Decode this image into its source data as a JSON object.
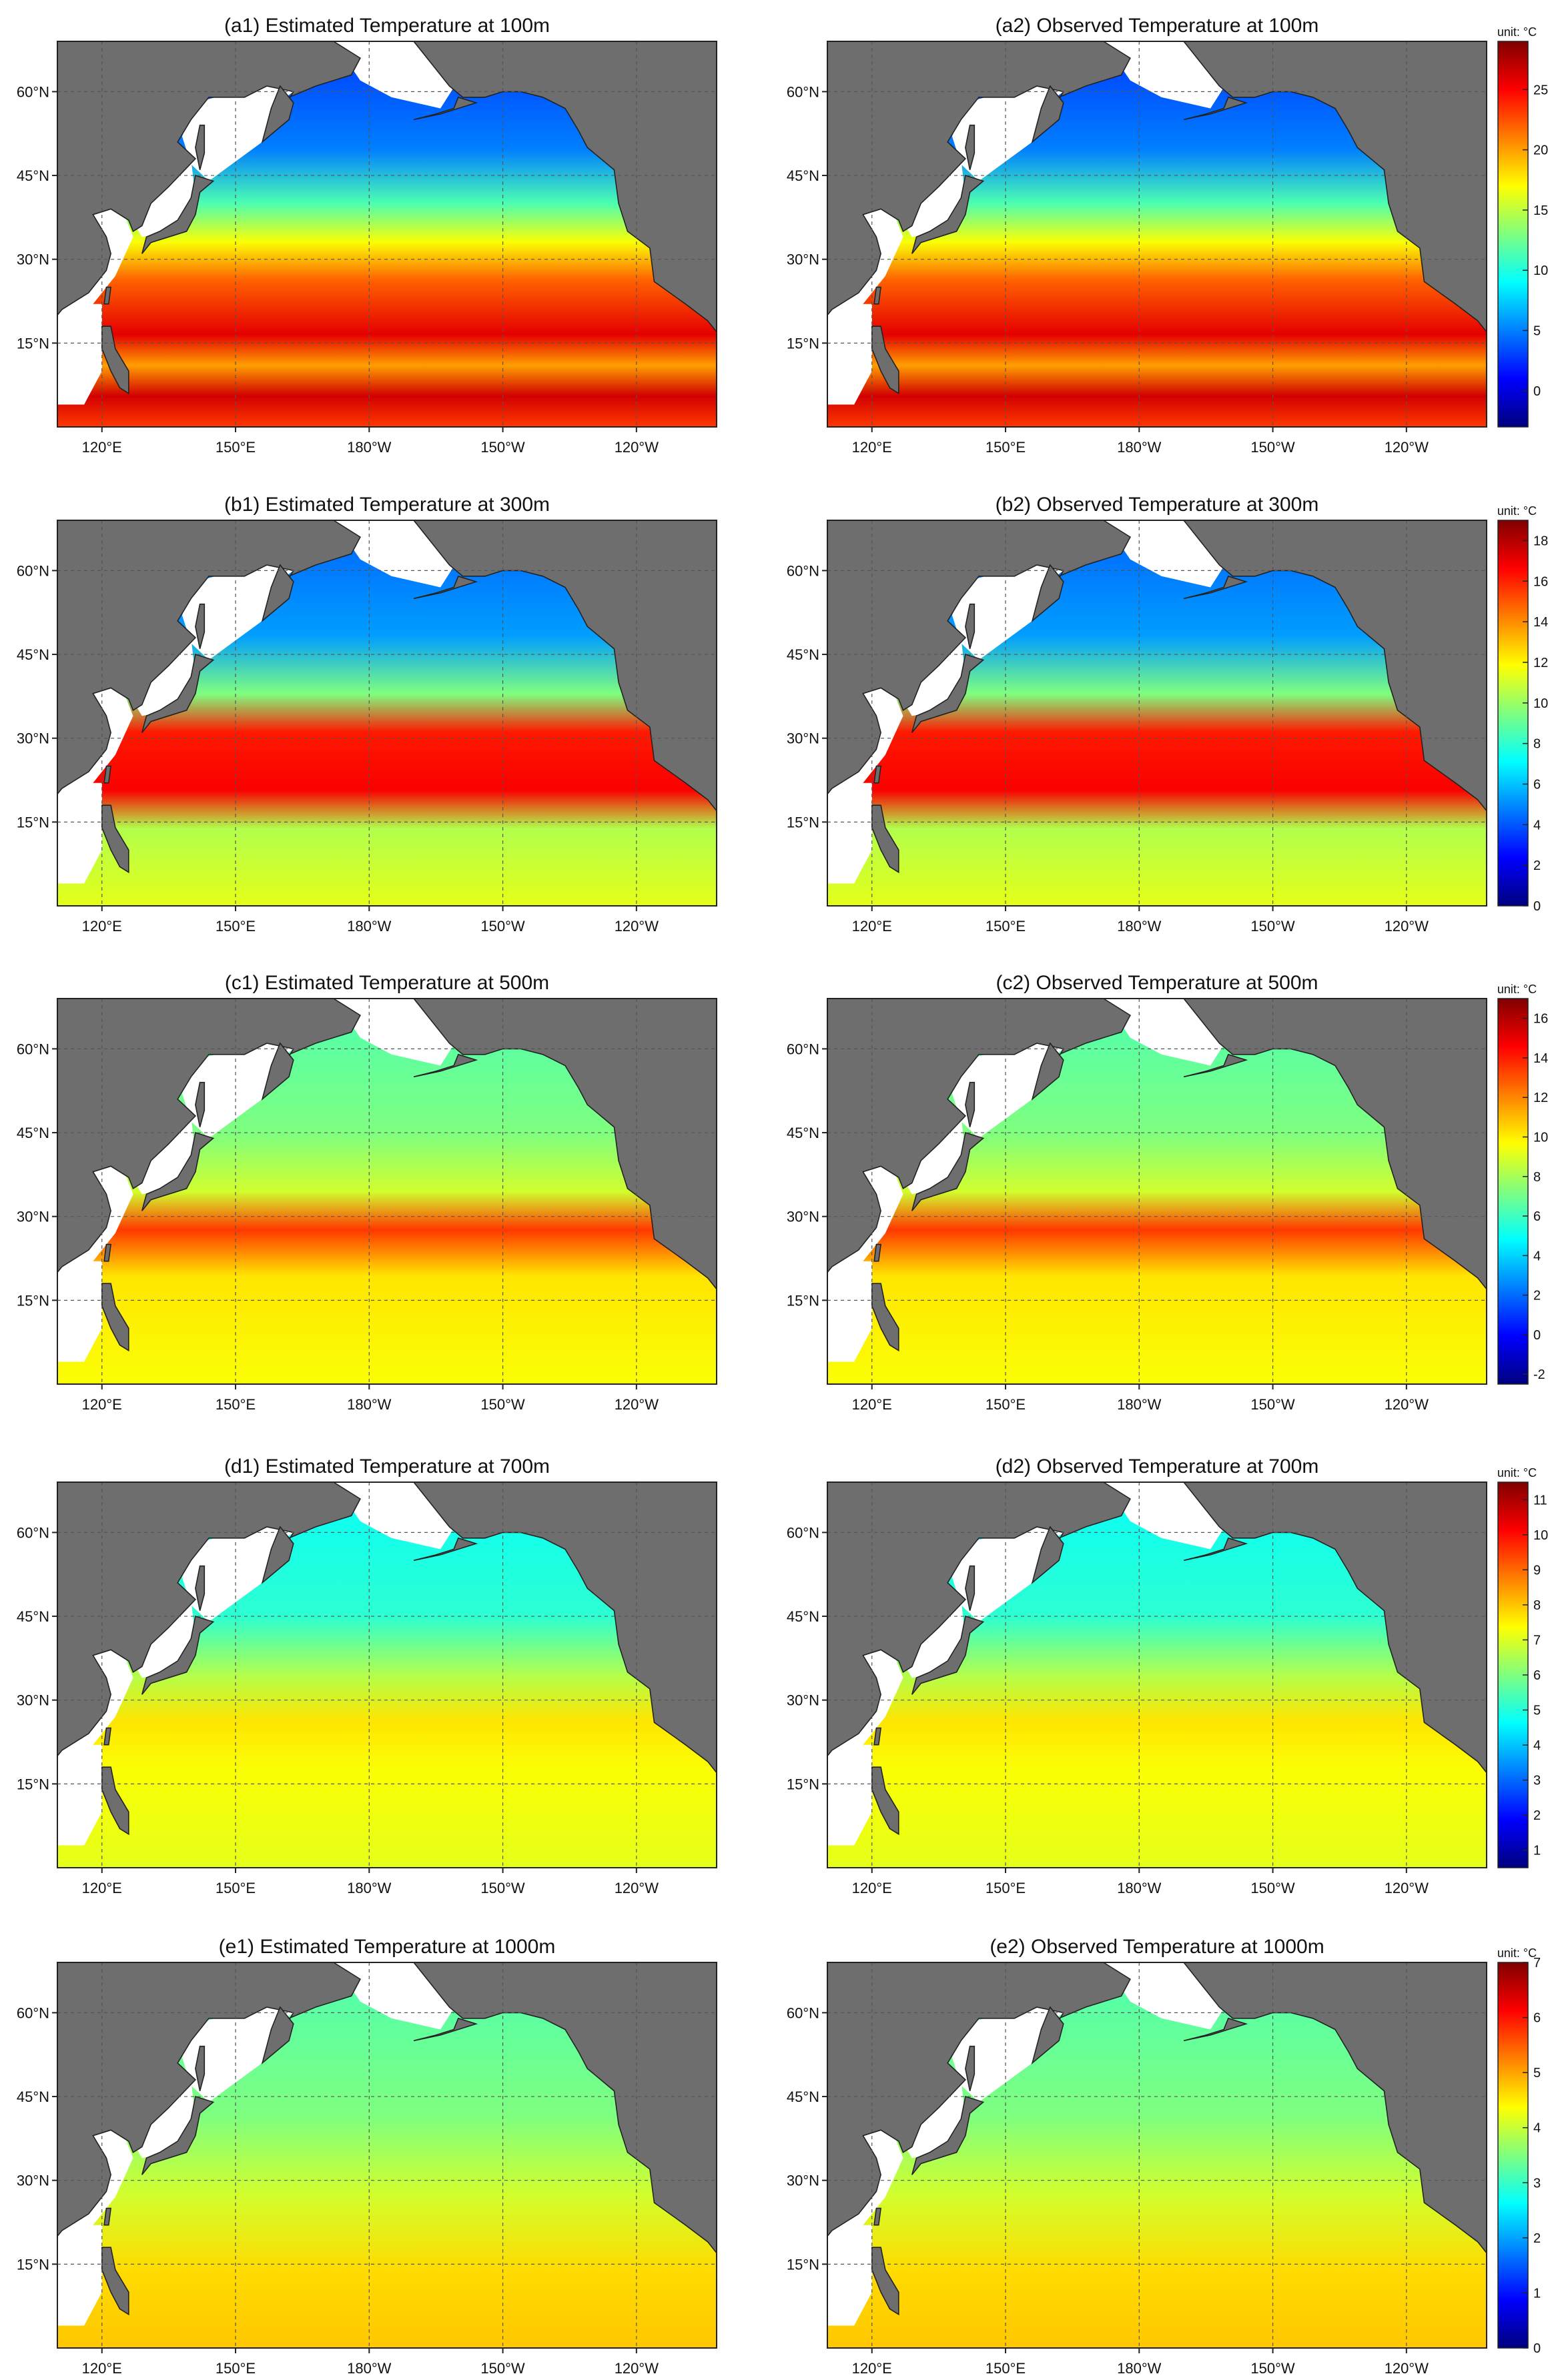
{
  "figure": {
    "colormap": [
      "#00007f",
      "#0000ff",
      "#007fff",
      "#00ffff",
      "#7fff7f",
      "#ffff00",
      "#ff7f00",
      "#ff0000",
      "#7f0000"
    ],
    "land_color": "#6e6e6e",
    "unmapped_color": "#ffffff",
    "axes": {
      "x_ticks": [
        "120°E",
        "150°E",
        "180°W",
        "150°W",
        "120°W"
      ],
      "y_ticks": [
        "60°N",
        "45°N",
        "30°N",
        "15°N"
      ]
    },
    "rows": [
      {
        "estimated_title": "(a1) Estimated Temperature at 100m",
        "observed_title": "(a2) Observed Temperature at 100m",
        "colorbar": {
          "unit": "unit: °C",
          "min": -3,
          "max": 29,
          "ticks": [
            0,
            5,
            10,
            15,
            20,
            25
          ]
        }
      },
      {
        "estimated_title": "(b1) Estimated Temperature at 300m",
        "observed_title": "(b2) Observed Temperature at 300m",
        "colorbar": {
          "unit": "unit: °C",
          "min": 0,
          "max": 19,
          "ticks": [
            0,
            2,
            4,
            6,
            8,
            10,
            12,
            14,
            16,
            18
          ]
        }
      },
      {
        "estimated_title": "(c1) Estimated Temperature at 500m",
        "observed_title": "(c2) Observed Temperature at 500m",
        "colorbar": {
          "unit": "unit: °C",
          "min": -2.5,
          "max": 17,
          "ticks": [
            -2,
            0,
            2,
            4,
            6,
            8,
            10,
            12,
            14,
            16
          ]
        }
      },
      {
        "estimated_title": "(d1) Estimated Temperature at 700m",
        "observed_title": "(d2) Observed Temperature at 700m",
        "colorbar": {
          "unit": "unit: °C",
          "min": 0.5,
          "max": 11.5,
          "ticks": [
            1,
            2,
            3,
            4,
            5,
            6,
            7,
            8,
            9,
            10,
            11
          ]
        }
      },
      {
        "estimated_title": "(e1) Estimated Temperature at 1000m",
        "observed_title": "(e2) Observed Temperature at 1000m",
        "colorbar": {
          "unit": "unit: °C",
          "min": 0,
          "max": 7,
          "ticks": [
            0,
            1,
            2,
            3,
            4,
            5,
            6,
            7
          ]
        }
      }
    ]
  }
}
